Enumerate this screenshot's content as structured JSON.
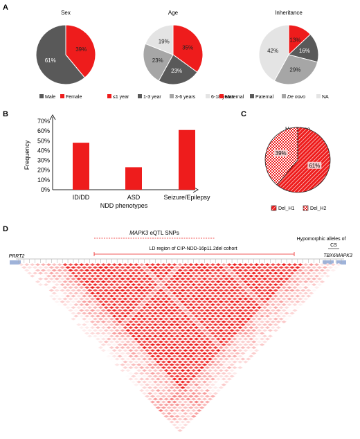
{
  "panels": {
    "a": "A",
    "b": "B",
    "c": "C",
    "d": "D"
  },
  "chart_data": [
    {
      "type": "pie",
      "title": "Sex",
      "labels": [
        "Female",
        "Male"
      ],
      "values": [
        39,
        61
      ],
      "value_labels": [
        "39%",
        "61%"
      ],
      "colors": [
        "#ee1c1c",
        "#595959"
      ],
      "legend": [
        {
          "label": "Male",
          "color": "#595959"
        },
        {
          "label": "Female",
          "color": "#ee1c1c"
        }
      ]
    },
    {
      "type": "pie",
      "title": "Age",
      "labels": [
        "≤1 year",
        "1-3 year",
        "3-6 years",
        "6-18 years"
      ],
      "values": [
        35,
        23,
        23,
        19
      ],
      "value_labels": [
        "35%",
        "23%",
        "23%",
        "19%"
      ],
      "colors": [
        "#ee1c1c",
        "#595959",
        "#a6a6a6",
        "#e4e4e4"
      ],
      "legend": [
        {
          "label": "≤1 year",
          "color": "#ee1c1c"
        },
        {
          "label": "1-3 year",
          "color": "#595959"
        },
        {
          "label": "3-6 years",
          "color": "#a6a6a6"
        },
        {
          "label": "6-18 years",
          "color": "#e4e4e4"
        }
      ]
    },
    {
      "type": "pie",
      "title": "Inheritance",
      "labels": [
        "Maternal",
        "Paternal",
        "De novo",
        "NA"
      ],
      "values": [
        13,
        16,
        29,
        42
      ],
      "value_labels": [
        "13%",
        "16%",
        "29%",
        "42%"
      ],
      "colors": [
        "#ee1c1c",
        "#595959",
        "#a6a6a6",
        "#e4e4e4"
      ],
      "legend": [
        {
          "label": "Maternal",
          "color": "#ee1c1c"
        },
        {
          "label": "Paternal",
          "color": "#595959"
        },
        {
          "label": "De novo",
          "color": "#a6a6a6",
          "italic": true
        },
        {
          "label": "NA",
          "color": "#e4e4e4"
        }
      ]
    },
    {
      "type": "bar",
      "categories": [
        "ID/DD",
        "ASD",
        "Seizure/Epilepsy"
      ],
      "values": [
        48,
        23,
        61
      ],
      "xlabel": "NDD phenotypes",
      "ylabel": "Frequency",
      "ylim": [
        0,
        70
      ],
      "yticks": [
        "0%",
        "10%",
        "20%",
        "30%",
        "40%",
        "50%",
        "60%",
        "70%"
      ],
      "color": "#ee1c1c"
    },
    {
      "type": "pie",
      "title": "Haplotype",
      "labels": [
        "Del_H1",
        "Del_H2"
      ],
      "values": [
        61,
        39
      ],
      "value_labels": [
        "61%",
        "39%"
      ],
      "colors": [
        "#ee1c1c",
        "#ee1c1c"
      ],
      "patterns": [
        "stripes",
        "checks"
      ],
      "legend": [
        {
          "label": "Del_H1",
          "pattern": "stripes"
        },
        {
          "label": "Del_H2",
          "pattern": "checks"
        }
      ]
    },
    {
      "type": "heatmap",
      "annotations": {
        "prrt2": "PRRT2",
        "mapk3_eqtl_gene": "MAPK3",
        "mapk3_eqtl_rest": " eQTL SNPs",
        "ld_region": "LD region of  CIP-NDD-16p11.2del cohort",
        "hypomorphic": "Hypomorphic alleles of",
        "cs": "CS",
        "tbx6": "TBX6",
        "mapk3": "MAPK3"
      },
      "color": "#ee1c1c"
    }
  ]
}
